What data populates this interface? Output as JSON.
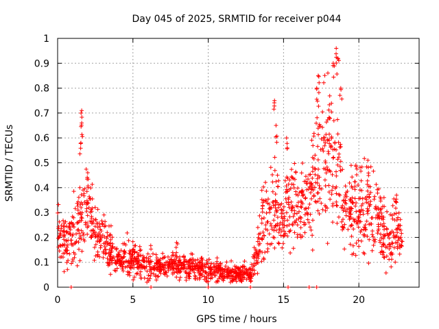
{
  "chart_data": {
    "type": "scatter",
    "title": "Day 045 of 2025, SRMTID for receiver p044",
    "xlabel": "GPS time / hours",
    "ylabel": "SRMTID / TECUs",
    "xlim": [
      0,
      24
    ],
    "ylim": [
      0,
      1
    ],
    "grid": true,
    "x_ticks": [
      0,
      5,
      10,
      15,
      20
    ],
    "x_tick_labels": [
      "0",
      "5",
      "10",
      "15",
      "20"
    ],
    "y_ticks": [
      0,
      0.1,
      0.2,
      0.3,
      0.4,
      0.5,
      0.6,
      0.7,
      0.8,
      0.9,
      1
    ],
    "y_tick_labels": [
      "0",
      "0.1",
      "0.2",
      "0.3",
      "0.4",
      "0.5",
      "0.6",
      "0.7",
      "0.8",
      "0.9",
      "1"
    ],
    "marker": "+",
    "color": "#ff0000",
    "series": [
      {
        "name": "p044",
        "trend": [
          {
            "x": 0.0,
            "y": 0.22,
            "spread": 0.08
          },
          {
            "x": 0.5,
            "y": 0.2,
            "spread": 0.08
          },
          {
            "x": 1.0,
            "y": 0.2,
            "spread": 0.1
          },
          {
            "x": 1.5,
            "y": 0.28,
            "spread": 0.12
          },
          {
            "x": 2.0,
            "y": 0.33,
            "spread": 0.1
          },
          {
            "x": 2.5,
            "y": 0.22,
            "spread": 0.08
          },
          {
            "x": 3.0,
            "y": 0.2,
            "spread": 0.08
          },
          {
            "x": 3.5,
            "y": 0.15,
            "spread": 0.07
          },
          {
            "x": 4.0,
            "y": 0.1,
            "spread": 0.05
          },
          {
            "x": 4.5,
            "y": 0.12,
            "spread": 0.07
          },
          {
            "x": 5.0,
            "y": 0.11,
            "spread": 0.05
          },
          {
            "x": 6.0,
            "y": 0.09,
            "spread": 0.05
          },
          {
            "x": 7.0,
            "y": 0.08,
            "spread": 0.04
          },
          {
            "x": 8.0,
            "y": 0.09,
            "spread": 0.04
          },
          {
            "x": 9.0,
            "y": 0.08,
            "spread": 0.04
          },
          {
            "x": 10.0,
            "y": 0.07,
            "spread": 0.04
          },
          {
            "x": 11.0,
            "y": 0.06,
            "spread": 0.03
          },
          {
            "x": 12.0,
            "y": 0.05,
            "spread": 0.03
          },
          {
            "x": 12.8,
            "y": 0.06,
            "spread": 0.03
          },
          {
            "x": 13.2,
            "y": 0.12,
            "spread": 0.05
          },
          {
            "x": 13.8,
            "y": 0.3,
            "spread": 0.15
          },
          {
            "x": 14.5,
            "y": 0.35,
            "spread": 0.15
          },
          {
            "x": 15.0,
            "y": 0.25,
            "spread": 0.1
          },
          {
            "x": 15.5,
            "y": 0.35,
            "spread": 0.15
          },
          {
            "x": 16.0,
            "y": 0.3,
            "spread": 0.12
          },
          {
            "x": 16.5,
            "y": 0.35,
            "spread": 0.12
          },
          {
            "x": 17.0,
            "y": 0.45,
            "spread": 0.2
          },
          {
            "x": 17.5,
            "y": 0.5,
            "spread": 0.2
          },
          {
            "x": 18.0,
            "y": 0.55,
            "spread": 0.22
          },
          {
            "x": 18.5,
            "y": 0.55,
            "spread": 0.25
          },
          {
            "x": 19.0,
            "y": 0.3,
            "spread": 0.1
          },
          {
            "x": 19.5,
            "y": 0.3,
            "spread": 0.12
          },
          {
            "x": 20.0,
            "y": 0.3,
            "spread": 0.12
          },
          {
            "x": 20.5,
            "y": 0.3,
            "spread": 0.15
          },
          {
            "x": 21.0,
            "y": 0.32,
            "spread": 0.15
          },
          {
            "x": 21.5,
            "y": 0.25,
            "spread": 0.1
          },
          {
            "x": 22.0,
            "y": 0.18,
            "spread": 0.08
          },
          {
            "x": 22.5,
            "y": 0.25,
            "spread": 0.1
          },
          {
            "x": 22.9,
            "y": 0.2,
            "spread": 0.04
          }
        ],
        "peaks": [
          {
            "x": 1.6,
            "y": 0.71
          },
          {
            "x": 1.6,
            "y": 0.66
          },
          {
            "x": 1.55,
            "y": 0.58
          },
          {
            "x": 2.0,
            "y": 0.46
          },
          {
            "x": 7.9,
            "y": 0.18
          },
          {
            "x": 14.4,
            "y": 0.75
          },
          {
            "x": 14.5,
            "y": 0.65
          },
          {
            "x": 15.2,
            "y": 0.6
          },
          {
            "x": 17.2,
            "y": 0.8
          },
          {
            "x": 17.3,
            "y": 0.85
          },
          {
            "x": 18.3,
            "y": 0.9
          },
          {
            "x": 18.5,
            "y": 0.96
          },
          {
            "x": 18.6,
            "y": 0.92
          },
          {
            "x": 18.8,
            "y": 0.8
          },
          {
            "x": 19.8,
            "y": 0.49
          },
          {
            "x": 20.6,
            "y": 0.51
          },
          {
            "x": 22.5,
            "y": 0.37
          }
        ],
        "zero_points": [
          0.9,
          6.2,
          10.0,
          12.8,
          15.3,
          16.7,
          17.2
        ]
      }
    ]
  }
}
